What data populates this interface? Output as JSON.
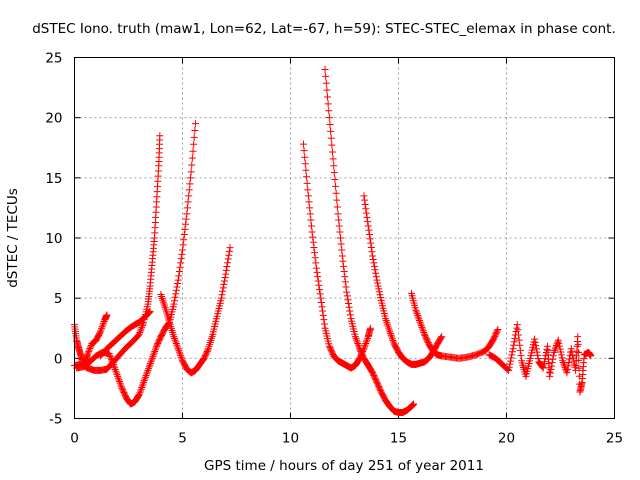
{
  "chart_data": {
    "type": "scatter",
    "title": "dSTEC Iono. truth (maw1, Lon=62, Lat=-67, h=59): STEC-STEC_elemax in phase cont.",
    "xlabel": "GPS time / hours of day 251 of year 2011",
    "ylabel": "dSTEC  / TECUs",
    "xlim": [
      0,
      25
    ],
    "ylim": [
      -5,
      25
    ],
    "xticks": [
      0,
      5,
      10,
      15,
      20,
      25
    ],
    "yticks": [
      -5,
      0,
      5,
      10,
      15,
      20,
      25
    ],
    "grid": true,
    "marker": "+",
    "color": "#ff0000",
    "series": [
      {
        "points": [
          [
            0,
            2.8
          ],
          [
            0.1,
            1.5
          ],
          [
            0.2,
            0.8
          ],
          [
            0.3,
            0.2
          ],
          [
            0.4,
            -0.5
          ],
          [
            0.5,
            -0.3
          ],
          [
            0.6,
            0.3
          ],
          [
            0.8,
            1.2
          ],
          [
            1.0,
            1.5
          ],
          [
            1.2,
            2.2
          ],
          [
            1.4,
            3.2
          ],
          [
            1.5,
            3.6
          ]
        ]
      },
      {
        "points": [
          [
            0,
            -0.6
          ],
          [
            0.3,
            -0.5
          ],
          [
            0.6,
            -0.8
          ],
          [
            0.9,
            -1.0
          ],
          [
            1.2,
            -1.0
          ],
          [
            1.5,
            -0.9
          ],
          [
            1.8,
            -0.3
          ],
          [
            2.1,
            0.3
          ],
          [
            2.4,
            0.9
          ],
          [
            2.7,
            1.4
          ],
          [
            3.0,
            2.0
          ],
          [
            3.2,
            3.0
          ],
          [
            3.4,
            4.5
          ],
          [
            3.5,
            6.0
          ],
          [
            3.6,
            8.0
          ],
          [
            3.7,
            10.0
          ],
          [
            3.8,
            13.0
          ],
          [
            3.9,
            16.0
          ],
          [
            3.95,
            18.5
          ]
        ]
      },
      {
        "points": [
          [
            0.1,
            -0.8
          ],
          [
            0.4,
            -0.7
          ],
          [
            0.7,
            -0.3
          ],
          [
            1.0,
            0.2
          ],
          [
            1.3,
            0.5
          ],
          [
            1.6,
            0.4
          ],
          [
            1.8,
            -0.5
          ],
          [
            2.0,
            -1.5
          ],
          [
            2.2,
            -2.5
          ],
          [
            2.4,
            -3.3
          ],
          [
            2.6,
            -3.8
          ],
          [
            2.8,
            -3.6
          ],
          [
            3.0,
            -3.0
          ],
          [
            3.2,
            -2.0
          ],
          [
            3.4,
            -1.0
          ],
          [
            3.6,
            0.0
          ],
          [
            3.8,
            1.0
          ],
          [
            4.0,
            1.8
          ],
          [
            4.2,
            2.5
          ],
          [
            4.4,
            3.0
          ],
          [
            4.6,
            4.5
          ],
          [
            4.8,
            6.5
          ],
          [
            5.0,
            9.0
          ],
          [
            5.2,
            12.0
          ],
          [
            5.4,
            15.5
          ],
          [
            5.6,
            19.5
          ]
        ]
      },
      {
        "points": [
          [
            1.2,
            0.2
          ],
          [
            1.5,
            0.8
          ],
          [
            1.8,
            1.3
          ],
          [
            2.1,
            1.8
          ],
          [
            2.4,
            2.3
          ],
          [
            2.7,
            2.7
          ],
          [
            3.0,
            3.0
          ],
          [
            3.3,
            3.5
          ],
          [
            3.5,
            3.9
          ]
        ]
      },
      {
        "points": [
          [
            4.0,
            5.3
          ],
          [
            4.2,
            4.2
          ],
          [
            4.4,
            3.0
          ],
          [
            4.6,
            1.8
          ],
          [
            4.8,
            0.8
          ],
          [
            5.0,
            -0.2
          ],
          [
            5.2,
            -0.9
          ],
          [
            5.4,
            -1.2
          ],
          [
            5.6,
            -1.0
          ],
          [
            5.8,
            -0.5
          ],
          [
            6.0,
            0.0
          ],
          [
            6.2,
            0.8
          ],
          [
            6.4,
            2.0
          ],
          [
            6.6,
            3.5
          ],
          [
            6.8,
            5.0
          ],
          [
            7.0,
            7.0
          ],
          [
            7.2,
            9.2
          ]
        ]
      },
      {
        "points": [
          [
            10.6,
            17.8
          ],
          [
            10.8,
            14.0
          ],
          [
            11.0,
            10.5
          ],
          [
            11.2,
            7.5
          ],
          [
            11.4,
            5.0
          ],
          [
            11.6,
            2.5
          ],
          [
            11.8,
            1.0
          ],
          [
            12.0,
            0.2
          ],
          [
            12.2,
            -0.2
          ],
          [
            12.4,
            -0.4
          ],
          [
            12.6,
            -0.6
          ],
          [
            12.8,
            -0.8
          ],
          [
            13.0,
            -0.6
          ],
          [
            13.2,
            0.0
          ],
          [
            13.4,
            0.8
          ],
          [
            13.6,
            1.8
          ],
          [
            13.7,
            2.5
          ]
        ]
      },
      {
        "points": [
          [
            11.6,
            24.0
          ],
          [
            11.8,
            20.0
          ],
          [
            12.0,
            16.0
          ],
          [
            12.2,
            12.0
          ],
          [
            12.4,
            8.5
          ],
          [
            12.6,
            5.5
          ],
          [
            12.8,
            3.3
          ],
          [
            13.0,
            1.8
          ],
          [
            13.2,
            0.8
          ],
          [
            13.4,
            0.0
          ],
          [
            13.6,
            -0.6
          ],
          [
            13.8,
            -1.2
          ],
          [
            14.0,
            -2.0
          ],
          [
            14.2,
            -2.8
          ],
          [
            14.4,
            -3.5
          ],
          [
            14.6,
            -4.0
          ],
          [
            14.8,
            -4.4
          ],
          [
            15.0,
            -4.5
          ],
          [
            15.2,
            -4.5
          ],
          [
            15.4,
            -4.3
          ],
          [
            15.6,
            -4.0
          ],
          [
            15.7,
            -3.8
          ]
        ]
      },
      {
        "points": [
          [
            13.4,
            13.5
          ],
          [
            13.6,
            11.0
          ],
          [
            13.8,
            8.5
          ],
          [
            14.0,
            6.5
          ],
          [
            14.2,
            4.8
          ],
          [
            14.4,
            3.3
          ],
          [
            14.6,
            2.2
          ],
          [
            14.8,
            1.2
          ],
          [
            15.0,
            0.5
          ],
          [
            15.2,
            0.0
          ],
          [
            15.4,
            -0.3
          ],
          [
            15.6,
            -0.5
          ],
          [
            15.8,
            -0.5
          ],
          [
            16.0,
            -0.4
          ],
          [
            16.2,
            -0.3
          ],
          [
            16.4,
            0.0
          ],
          [
            16.6,
            0.5
          ],
          [
            16.8,
            1.2
          ],
          [
            17.0,
            1.8
          ]
        ]
      },
      {
        "points": [
          [
            15.6,
            5.4
          ],
          [
            15.8,
            4.0
          ],
          [
            16.0,
            3.0
          ],
          [
            16.2,
            2.0
          ],
          [
            16.4,
            1.2
          ],
          [
            16.6,
            0.6
          ],
          [
            16.8,
            0.3
          ],
          [
            17.0,
            0.2
          ],
          [
            17.4,
            0.1
          ],
          [
            17.8,
            0.0
          ],
          [
            18.2,
            0.1
          ],
          [
            18.6,
            0.3
          ],
          [
            19.0,
            0.6
          ],
          [
            19.2,
            1.0
          ],
          [
            19.4,
            1.6
          ],
          [
            19.6,
            2.4
          ]
        ]
      },
      {
        "points": [
          [
            19.2,
            0.3
          ],
          [
            19.5,
            0.0
          ],
          [
            19.8,
            -0.5
          ],
          [
            20.1,
            -1.0
          ],
          [
            20.3,
            0.8
          ],
          [
            20.5,
            2.8
          ],
          [
            20.7,
            -0.2
          ],
          [
            20.9,
            -1.5
          ],
          [
            21.1,
            0.0
          ],
          [
            21.3,
            1.6
          ],
          [
            21.5,
            -0.3
          ],
          [
            21.7,
            -0.8
          ],
          [
            21.9,
            1.0
          ],
          [
            22.0,
            -1.5
          ],
          [
            22.2,
            0.5
          ],
          [
            22.4,
            1.5
          ],
          [
            22.6,
            -0.2
          ],
          [
            22.8,
            -1.2
          ],
          [
            23.0,
            0.8
          ],
          [
            23.2,
            -1.0
          ],
          [
            23.3,
            1.8
          ],
          [
            23.4,
            -2.8
          ],
          [
            23.5,
            -2.0
          ],
          [
            23.6,
            0.3
          ],
          [
            23.8,
            0.5
          ],
          [
            23.9,
            0.2
          ]
        ]
      }
    ]
  }
}
